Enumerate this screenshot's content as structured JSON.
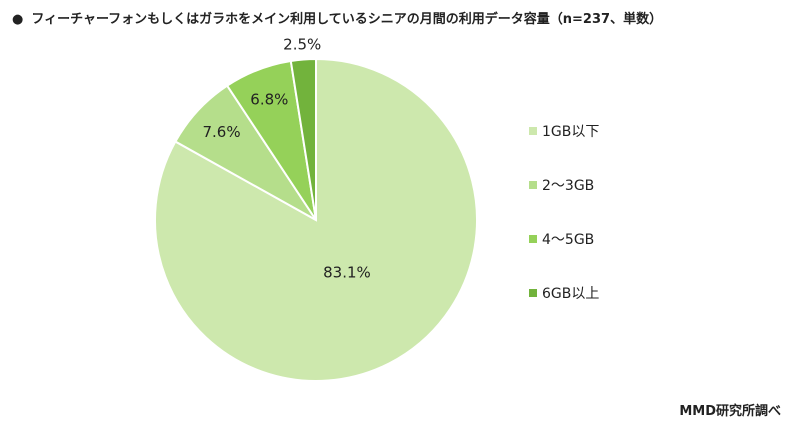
{
  "title": "フィーチャーフォンもしくはガラホをメイン利用しているシニアの月間の利用データ容量（n=237、単数）",
  "bullet": "●",
  "source": "MMD研究所調べ",
  "chart_data": {
    "type": "pie",
    "categories": [
      "1GB以下",
      "2～3GB",
      "4～5GB",
      "6GB以上"
    ],
    "values": [
      83.1,
      7.6,
      6.8,
      2.5
    ],
    "labels": [
      "83.1%",
      "7.6%",
      "6.8%",
      "2.5%"
    ],
    "colors": [
      "#cde8ad",
      "#b5de8b",
      "#95d159",
      "#72b33c"
    ],
    "legend_position": "right"
  }
}
